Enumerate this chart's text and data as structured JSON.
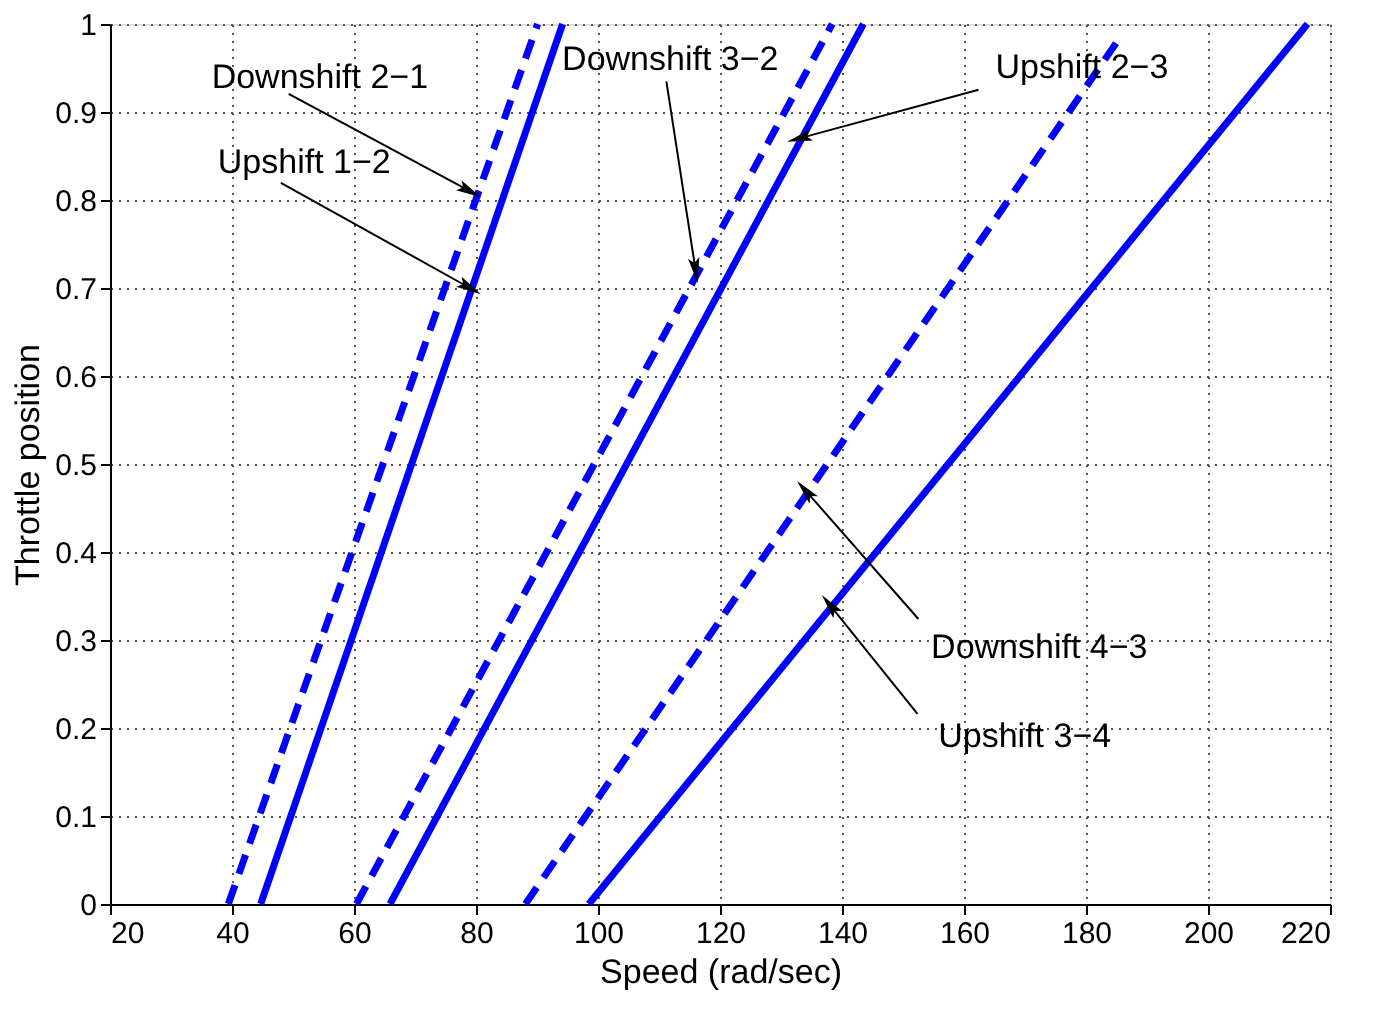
{
  "chart_data": {
    "type": "line",
    "xlabel": "Speed (rad/sec)",
    "ylabel": "Throttle position",
    "xlim": [
      20,
      220
    ],
    "xticks": [
      20,
      40,
      60,
      80,
      100,
      120,
      140,
      160,
      180,
      200,
      220
    ],
    "ylim": [
      0,
      1
    ],
    "yticks": [
      0,
      0.1,
      0.2,
      0.3,
      0.4,
      0.5,
      0.6,
      0.7,
      0.8,
      0.9,
      1
    ],
    "grid": true,
    "marker": "none",
    "series": [
      {
        "color": "#0000ff",
        "line_style": "dashed",
        "x": [
          39.4,
          90.1
        ],
        "values": [
          0,
          1
        ]
      },
      {
        "color": "#0000ff",
        "line_style": "solid",
        "x": [
          44.7,
          94.2
        ],
        "values": [
          0,
          1
        ]
      },
      {
        "color": "#0000ff",
        "line_style": "dashed",
        "x": [
          60.4,
          138.4
        ],
        "values": [
          0,
          1
        ]
      },
      {
        "color": "#0000ff",
        "line_style": "solid",
        "x": [
          65.9,
          143.5
        ],
        "values": [
          0,
          1
        ]
      },
      {
        "color": "#0000ff",
        "line_style": "dashed",
        "x": [
          88.1,
          185.1
        ],
        "values": [
          0,
          0.98
        ]
      },
      {
        "color": "#0000ff",
        "line_style": "solid",
        "x": [
          98.5,
          216.3
        ],
        "values": [
          0,
          1
        ]
      }
    ],
    "annotations": [
      {
        "text": "Downshift 2−1",
        "x": 79,
        "y": 0.81
      },
      {
        "text": "Upshift 1−2",
        "x": 79,
        "y": 0.7
      },
      {
        "text": "Downshift 3−2",
        "x": 116,
        "y": 0.72
      },
      {
        "text": "Upshift 2−3",
        "x": 133,
        "y": 0.87
      },
      {
        "text": "Downshift 4−3",
        "x": 134,
        "y": 0.47
      },
      {
        "text": "Upshift 3−4",
        "x": 138,
        "y": 0.34
      }
    ]
  }
}
